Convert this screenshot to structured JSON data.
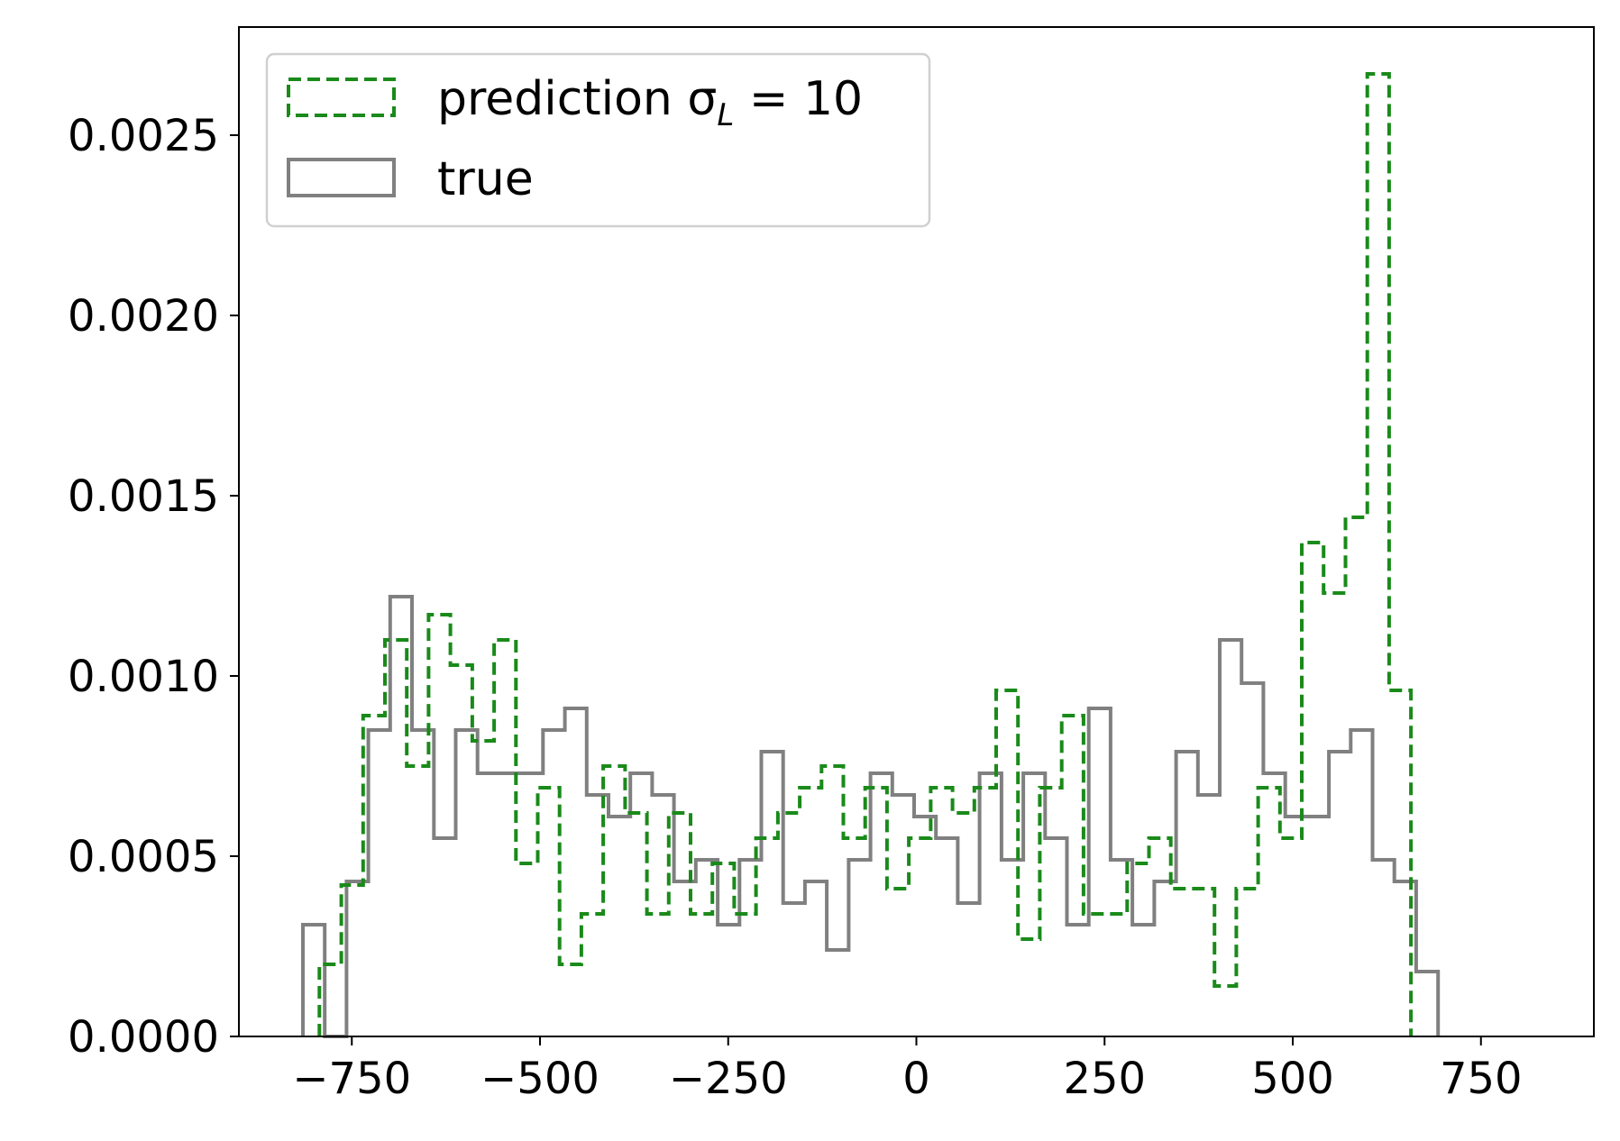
{
  "chart_data": {
    "type": "histogram-step",
    "title": "",
    "xlabel": "",
    "ylabel": "",
    "xlim": [
      -900,
      900
    ],
    "ylim": [
      0,
      0.0028
    ],
    "grid": false,
    "legend_position": "top-left",
    "x_ticks": [
      {
        "value": -750,
        "label": "−750"
      },
      {
        "value": -500,
        "label": "−500"
      },
      {
        "value": -250,
        "label": "−250"
      },
      {
        "value": 0,
        "label": "0"
      },
      {
        "value": 250,
        "label": "250"
      },
      {
        "value": 500,
        "label": "500"
      },
      {
        "value": 750,
        "label": "750"
      }
    ],
    "y_ticks": [
      {
        "value": 0,
        "label": "0.0000"
      },
      {
        "value": 0.0005,
        "label": "0.0005"
      },
      {
        "value": 0.001,
        "label": "0.0010"
      },
      {
        "value": 0.0015,
        "label": "0.0015"
      },
      {
        "value": 0.002,
        "label": "0.0020"
      },
      {
        "value": 0.0025,
        "label": "0.0025"
      }
    ],
    "series": [
      {
        "name": "prediction σ",
        "name_subscript": "L",
        "name_suffix": " = 10",
        "color": "#1a8a1a",
        "linestyle": "dashed",
        "bin_start": -793,
        "bin_width": 29,
        "values": [
          0.0002,
          0.00042,
          0.00089,
          0.0011,
          0.00075,
          0.00117,
          0.00103,
          0.00082,
          0.0011,
          0.00048,
          0.00069,
          0.0002,
          0.00034,
          0.00075,
          0.00062,
          0.00034,
          0.00062,
          0.00034,
          0.00048,
          0.00034,
          0.00055,
          0.00062,
          0.00069,
          0.00075,
          0.00055,
          0.00069,
          0.00041,
          0.00055,
          0.00069,
          0.00062,
          0.00069,
          0.00096,
          0.00027,
          0.00069,
          0.00089,
          0.00034,
          0.00034,
          0.00048,
          0.00055,
          0.00041,
          0.00041,
          0.00014,
          0.00041,
          0.00069,
          0.00055,
          0.00137,
          0.00123,
          0.00144,
          0.00267,
          0.00096
        ]
      },
      {
        "name": "true",
        "color": "#808080",
        "linestyle": "solid",
        "bin_start": -815,
        "bin_width": 29,
        "values": [
          0.00031,
          0,
          0.00043,
          0.00085,
          0.00122,
          0.00085,
          0.00055,
          0.00085,
          0.00073,
          0.00073,
          0.00073,
          0.00085,
          0.00091,
          0.00067,
          0.00061,
          0.00073,
          0.00067,
          0.00043,
          0.00049,
          0.00031,
          0.00049,
          0.00079,
          0.00037,
          0.00043,
          0.00024,
          0.00049,
          0.00073,
          0.00067,
          0.00061,
          0.00055,
          0.00037,
          0.00073,
          0.00049,
          0.00073,
          0.00055,
          0.00031,
          0.00091,
          0.00049,
          0.00031,
          0.00043,
          0.00079,
          0.00067,
          0.0011,
          0.00098,
          0.00073,
          0.00061,
          0.00061,
          0.00079,
          0.00085,
          0.00049,
          0.00043,
          0.00018
        ]
      }
    ]
  }
}
